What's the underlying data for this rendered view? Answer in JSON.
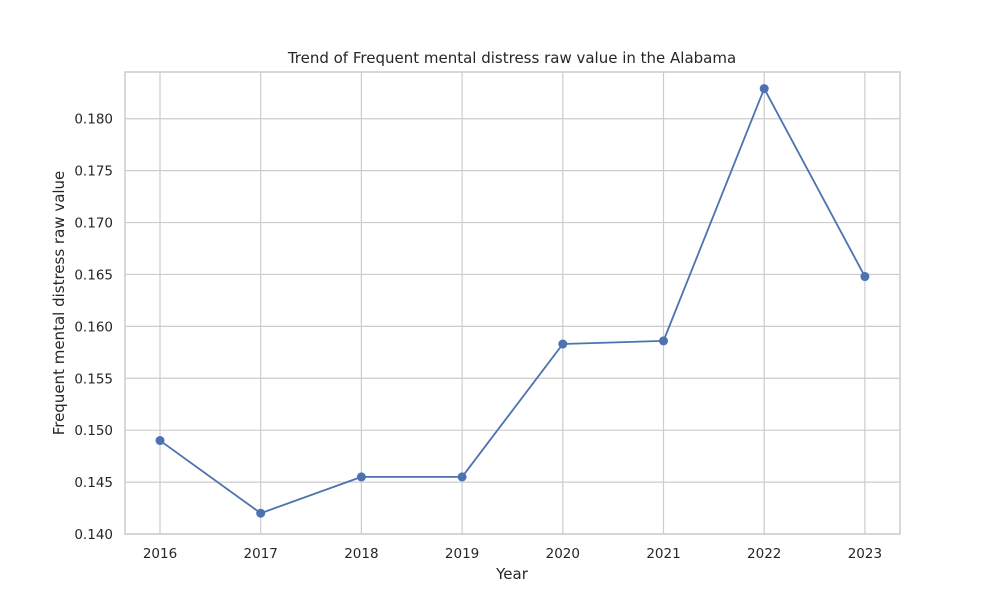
{
  "chart_data": {
    "type": "line",
    "title": "Trend of Frequent mental distress raw value in the Alabama",
    "xlabel": "Year",
    "ylabel": "Frequent mental distress raw value",
    "x": [
      "2016",
      "2017",
      "2018",
      "2019",
      "2020",
      "2021",
      "2022",
      "2023"
    ],
    "series": [
      {
        "values": [
          0.149,
          0.142,
          0.1455,
          0.1455,
          0.1583,
          0.1586,
          0.1829,
          0.1648
        ],
        "color": "#4c72b0",
        "marker": "circle"
      }
    ],
    "yticks": [
      "0.140",
      "0.145",
      "0.150",
      "0.155",
      "0.160",
      "0.165",
      "0.170",
      "0.175",
      "0.180"
    ],
    "ylim": [
      0.14,
      0.1845
    ],
    "grid": true,
    "legend": "none"
  }
}
